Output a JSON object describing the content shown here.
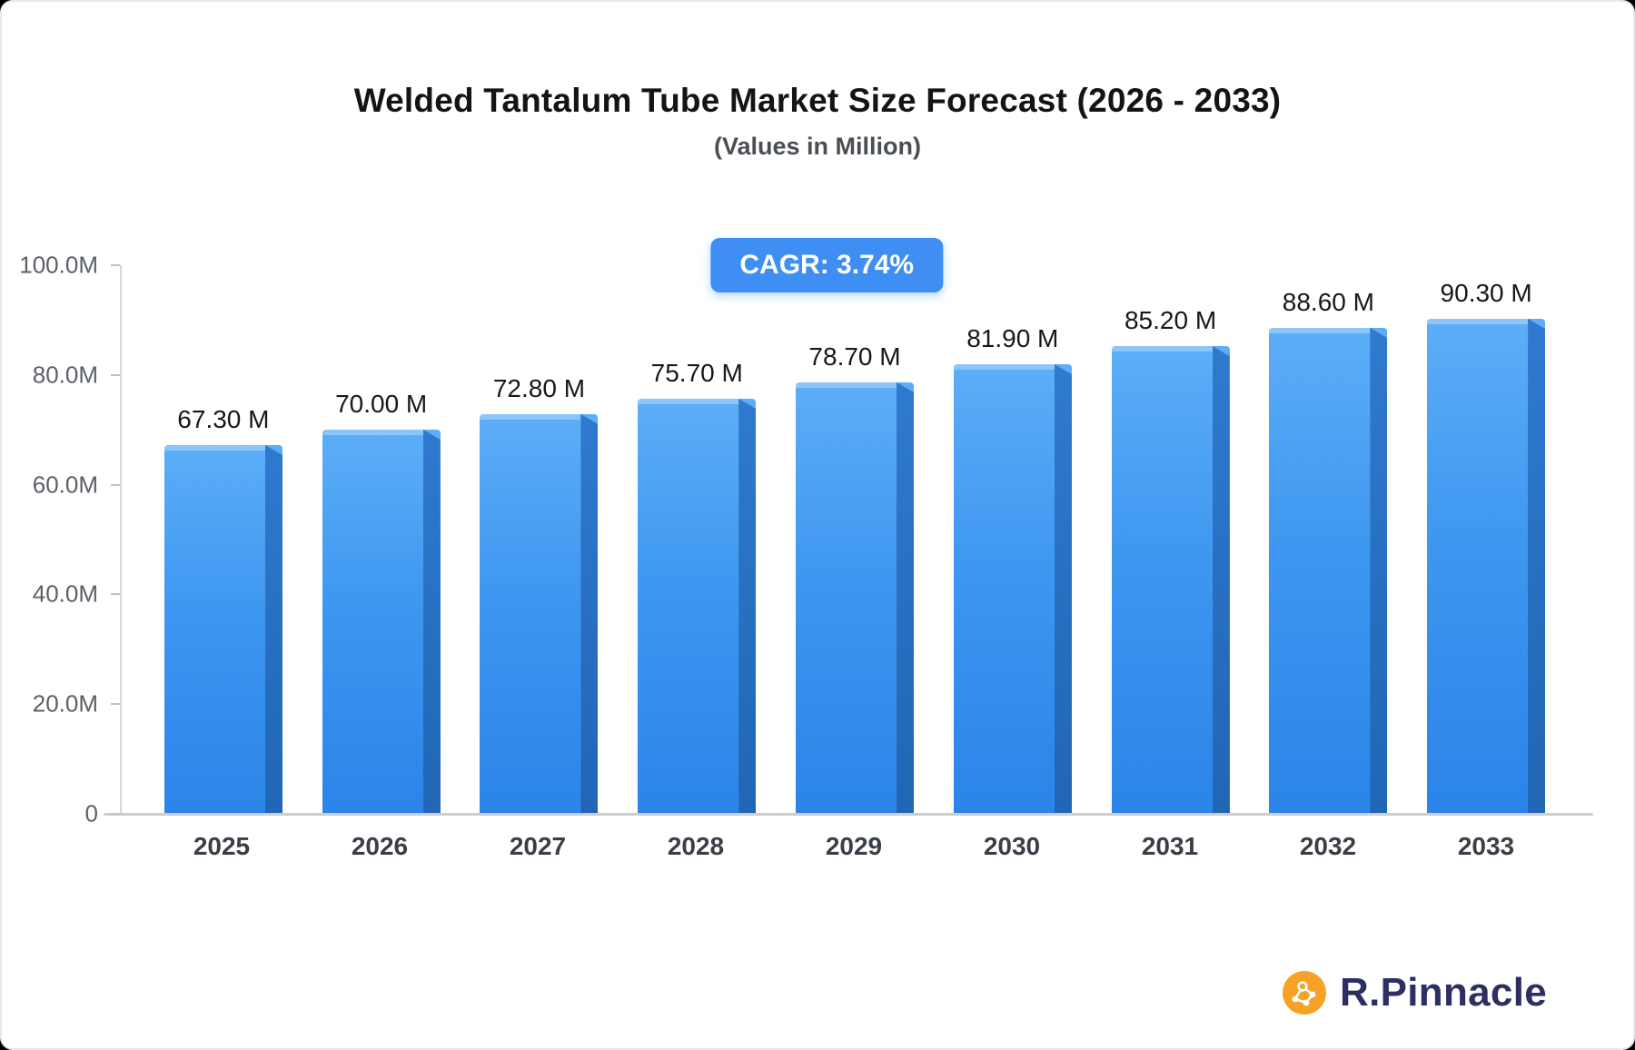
{
  "header": {
    "title": "Welded Tantalum Tube Market Size Forecast (2026 - 2033)",
    "subtitle": "(Values in Million)"
  },
  "badge": {
    "label": "CAGR: 3.74%"
  },
  "chart_data": {
    "type": "bar",
    "title": "Welded Tantalum Tube Market Size Forecast (2026 - 2033)",
    "subtitle": "(Values in Million)",
    "categories": [
      "2025",
      "2026",
      "2027",
      "2028",
      "2029",
      "2030",
      "2031",
      "2032",
      "2033"
    ],
    "values": [
      67.3,
      70.0,
      72.8,
      75.7,
      78.7,
      81.9,
      85.2,
      88.6,
      90.3
    ],
    "value_labels": [
      "67.30 M",
      "70.00 M",
      "72.80 M",
      "75.70 M",
      "78.70 M",
      "81.90 M",
      "85.20 M",
      "88.60 M",
      "90.30 M"
    ],
    "xlabel": "",
    "ylabel": "",
    "ylim": [
      0,
      100
    ],
    "y_ticks": [
      {
        "label": "100.0M",
        "value": 100
      },
      {
        "label": "80.0M",
        "value": 80
      },
      {
        "label": "60.0M",
        "value": 60
      },
      {
        "label": "40.0M",
        "value": 40
      },
      {
        "label": "20.0M",
        "value": 20
      },
      {
        "label": "0",
        "value": 0
      }
    ],
    "grid": false,
    "legend": null,
    "colors": {
      "bar_top": "#5caef7",
      "bar_bottom": "#2b84e8",
      "bar_side": "#2166b4",
      "badge_bg": "#3f8ef3",
      "axis_line": "#cdcdcd",
      "title_text": "#141414",
      "axis_text": "#5b6067"
    }
  },
  "branding": {
    "name": "R.Pinnacle",
    "icon": "network-nodes-icon",
    "icon_color": "#f6a227"
  }
}
